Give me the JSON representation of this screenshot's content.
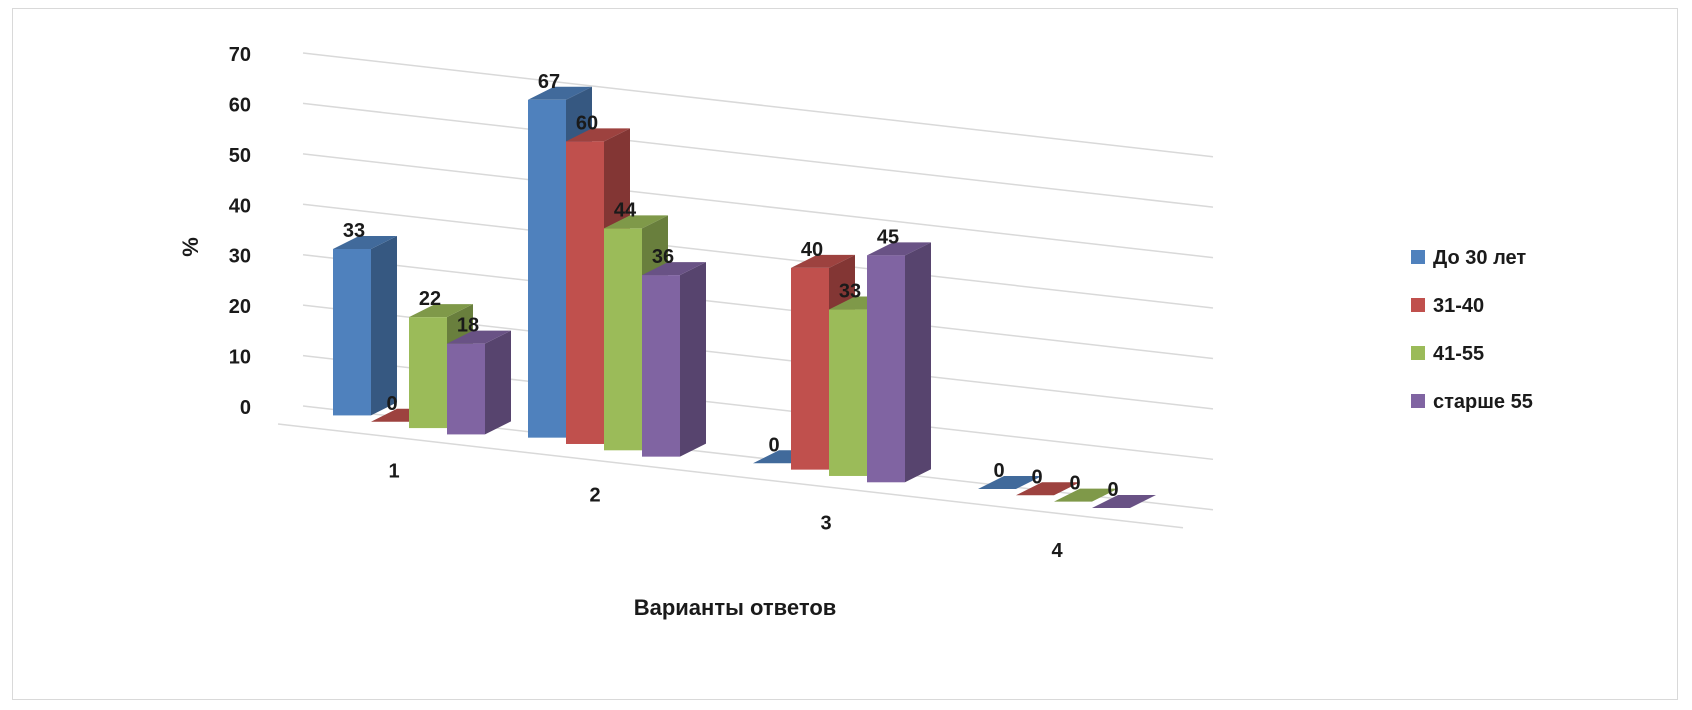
{
  "chart_data": {
    "type": "bar",
    "title": "",
    "xlabel": "Варианты ответов",
    "ylabel": "%",
    "ylim": [
      0,
      70
    ],
    "yticks": [
      "0",
      "10",
      "20",
      "30",
      "40",
      "50",
      "60",
      "70"
    ],
    "categories": [
      "1",
      "2",
      "3",
      "4"
    ],
    "series": [
      {
        "name": "До 30 лет",
        "color": "#4f81bd",
        "values": [
          33,
          67,
          0,
          0
        ]
      },
      {
        "name": "31-40",
        "color": "#c0504d",
        "values": [
          0,
          60,
          40,
          0
        ]
      },
      {
        "name": "41-55",
        "color": "#9bbb59",
        "values": [
          22,
          44,
          33,
          0
        ]
      },
      {
        "name": "старше 55",
        "color": "#8064a2",
        "values": [
          18,
          36,
          45,
          0
        ]
      }
    ],
    "grid": true,
    "legend": "right",
    "style": "3d-clustered-column"
  }
}
